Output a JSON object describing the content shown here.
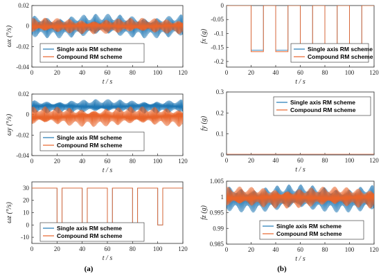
{
  "legend": {
    "series1": "Single axis RM scheme",
    "series2": "Compound RM scheme"
  },
  "colors": {
    "series1": "#1f77b4",
    "series2": "#e8642a"
  },
  "panel_labels": {
    "left": "(a)",
    "right": "(b)"
  },
  "chart_data": [
    {
      "type": "line",
      "ylabel": "ωx (°/s)",
      "xlabel": "t / s",
      "xlim": [
        0,
        120
      ],
      "ylim": [
        -0.04,
        0.02
      ],
      "xticks": [
        "0",
        "20",
        "40",
        "60",
        "80",
        "100",
        "120"
      ],
      "yticks": [
        "-0.04",
        "-0.02",
        "0",
        "0.02"
      ],
      "series": [
        {
          "name": "Single axis RM scheme",
          "shape": "osc",
          "center": 0.0,
          "amplitude": 0.012
        },
        {
          "name": "Compound RM scheme",
          "shape": "osc",
          "center": 0.0,
          "amplitude": 0.008
        }
      ]
    },
    {
      "type": "line",
      "ylabel": "fx (g)",
      "xlabel": "t / s",
      "xlim": [
        0,
        120
      ],
      "ylim": [
        -0.22,
        0.0
      ],
      "xticks": [
        "0",
        "20",
        "40",
        "60",
        "80",
        "100",
        "120"
      ],
      "yticks": [
        "-0.2",
        "-0.15",
        "-0.1",
        "-0.05",
        "0"
      ],
      "series": [
        {
          "name": "Single axis RM scheme",
          "shape": "pulse",
          "high": 0.0,
          "low": -0.16,
          "pulses": [
            [
              20,
              30
            ],
            [
              40,
              50
            ],
            [
              60,
              70
            ],
            [
              80,
              90
            ],
            [
              100,
              110
            ]
          ]
        },
        {
          "name": "Compound RM scheme",
          "shape": "pulse",
          "high": 0.0,
          "low": -0.165,
          "pulses": [
            [
              20,
              30
            ],
            [
              40,
              50
            ],
            [
              60,
              70
            ],
            [
              80,
              90
            ],
            [
              100,
              110
            ]
          ]
        }
      ]
    },
    {
      "type": "line",
      "ylabel": "ωy (°/s)",
      "xlabel": "t / s",
      "xlim": [
        0,
        120
      ],
      "ylim": [
        -0.04,
        0.02
      ],
      "xticks": [
        "0",
        "20",
        "40",
        "60",
        "80",
        "100",
        "120"
      ],
      "yticks": [
        "-0.04",
        "-0.02",
        "0",
        "0.02"
      ],
      "series": [
        {
          "name": "Single axis RM scheme",
          "shape": "osc",
          "center": 0.008,
          "amplitude": 0.007
        },
        {
          "name": "Compound RM scheme",
          "shape": "osc",
          "center": -0.002,
          "amplitude": 0.01
        }
      ]
    },
    {
      "type": "line",
      "ylabel": "fy (g)",
      "xlabel": "t / s",
      "xlim": [
        0,
        120
      ],
      "ylim": [
        0,
        0.3
      ],
      "xticks": [
        "0",
        "20",
        "40",
        "60",
        "80",
        "100",
        "120"
      ],
      "yticks": [
        "0",
        "0.1",
        "0.2",
        "0.3"
      ],
      "series": [
        {
          "name": "Single axis RM scheme",
          "shape": "flat",
          "value": 0.002
        },
        {
          "name": "Compound RM scheme",
          "shape": "flat",
          "value": 0.003
        }
      ]
    },
    {
      "type": "line",
      "ylabel": "ωz (°/s)",
      "xlabel": "t / s",
      "xlim": [
        0,
        120
      ],
      "ylim": [
        -15,
        35
      ],
      "xticks": [
        "0",
        "20",
        "40",
        "60",
        "80",
        "100",
        "120"
      ],
      "yticks": [
        "-10",
        "0",
        "10",
        "20",
        "30"
      ],
      "series": [
        {
          "name": "Single axis RM scheme",
          "shape": "pulse",
          "high": 30,
          "low": 0,
          "pulses": [
            [
              20,
              24
            ],
            [
              40,
              44
            ],
            [
              60,
              64
            ],
            [
              80,
              84
            ],
            [
              100,
              104
            ]
          ]
        },
        {
          "name": "Compound RM scheme",
          "shape": "pulse",
          "high": 30,
          "low": 0,
          "pulses": [
            [
              20,
              24
            ],
            [
              40,
              44
            ],
            [
              60,
              64
            ],
            [
              80,
              84
            ],
            [
              100,
              104
            ]
          ]
        }
      ]
    },
    {
      "type": "line",
      "ylabel": "fz (g)",
      "xlabel": "t / s",
      "xlim": [
        0,
        120
      ],
      "ylim": [
        0.985,
        1.005
      ],
      "xticks": [
        "0",
        "20",
        "40",
        "60",
        "80",
        "100",
        "120"
      ],
      "yticks": [
        "0.985",
        "0.99",
        "0.995",
        "1",
        "1.005"
      ],
      "series": [
        {
          "name": "Single axis RM scheme",
          "shape": "osc",
          "center": 0.9995,
          "amplitude": 0.0045
        },
        {
          "name": "Compound RM scheme",
          "shape": "osc",
          "center": 0.9998,
          "amplitude": 0.0035
        }
      ]
    }
  ]
}
